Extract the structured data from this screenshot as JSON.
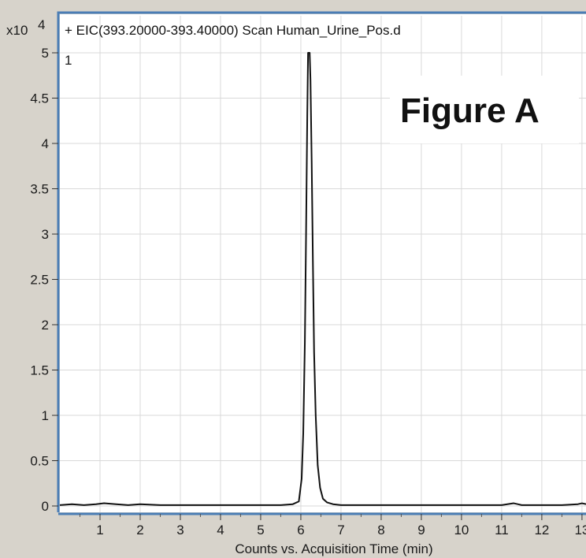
{
  "chart_data": {
    "type": "line",
    "title": "+ EIC(393.20000-393.40000) Scan Human_Urine_Pos.d",
    "annotation": "Figure A",
    "trace_number": "1",
    "y_multiplier_label": "x10",
    "y_multiplier_exponent": "4",
    "xlabel": "Counts vs. Acquisition Time (min)",
    "ylabel": "",
    "xlim": [
      0,
      13.1
    ],
    "ylim": [
      0,
      5.0
    ],
    "x_ticks": [
      1,
      2,
      3,
      4,
      5,
      6,
      7,
      8,
      9,
      10,
      11,
      12,
      13
    ],
    "x_tick_labels": [
      "1",
      "2",
      "3",
      "4",
      "5",
      "6",
      "7",
      "8",
      "9",
      "10",
      "11",
      "12",
      "13"
    ],
    "y_ticks": [
      0,
      0.5,
      1,
      1.5,
      2,
      2.5,
      3,
      3.5,
      4,
      4.5,
      5
    ],
    "y_tick_labels": [
      "0",
      "0.5",
      "1",
      "1.5",
      "2",
      "2.5",
      "3",
      "3.5",
      "4",
      "4.5",
      "5"
    ],
    "grid": true,
    "line_color": "#111111",
    "border_color": "#4a7db5",
    "series": [
      {
        "x": [
          0.0,
          0.3,
          0.6,
          0.9,
          1.1,
          1.4,
          1.7,
          2.0,
          2.5,
          3.0,
          3.5,
          4.0,
          4.5,
          5.0,
          5.5,
          5.8,
          5.95,
          6.02,
          6.06,
          6.1,
          6.13,
          6.16,
          6.18,
          6.2,
          6.22,
          6.24,
          6.27,
          6.3,
          6.33,
          6.37,
          6.42,
          6.48,
          6.55,
          6.65,
          6.8,
          7.0,
          7.5,
          8.0,
          9.0,
          10.0,
          11.0,
          11.3,
          11.4,
          11.5,
          12.0,
          12.5,
          12.9,
          13.0,
          13.1
        ],
        "y": [
          0.01,
          0.02,
          0.01,
          0.02,
          0.03,
          0.02,
          0.01,
          0.02,
          0.01,
          0.01,
          0.01,
          0.01,
          0.01,
          0.01,
          0.01,
          0.02,
          0.05,
          0.3,
          0.8,
          1.8,
          3.0,
          4.3,
          5.0,
          5.0,
          5.0,
          4.7,
          3.8,
          2.7,
          1.7,
          1.0,
          0.45,
          0.2,
          0.08,
          0.04,
          0.02,
          0.01,
          0.01,
          0.01,
          0.01,
          0.01,
          0.01,
          0.03,
          0.02,
          0.01,
          0.01,
          0.01,
          0.02,
          0.03,
          0.02
        ]
      }
    ]
  }
}
